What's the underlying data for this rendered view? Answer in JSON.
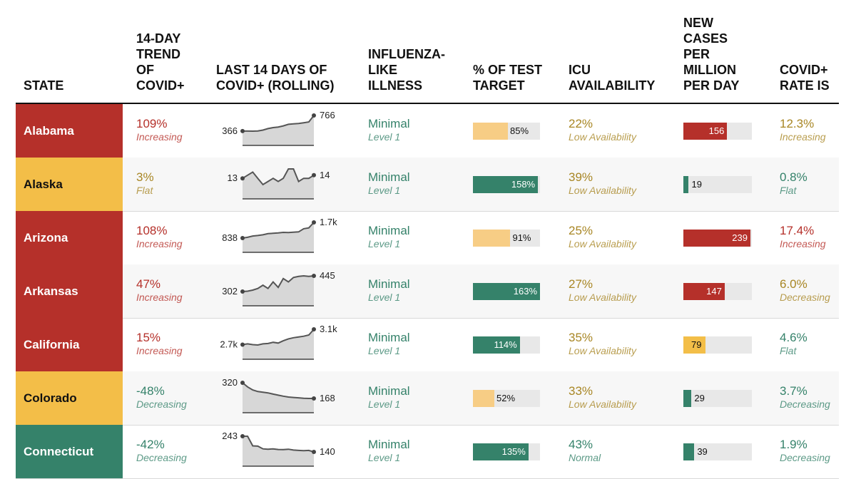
{
  "headers": {
    "state": "STATE",
    "trend": "14-DAY\nTREND\nOF\nCOVID+",
    "last14": "LAST 14 DAYS OF\nCOVID+ (ROLLING)",
    "ili": "INFLUENZA-\nLIKE\nILLNESS",
    "test": "% OF TEST\nTARGET",
    "icu": "ICU\nAVAILABILITY",
    "newcases": "NEW\nCASES\nPER\nMILLION\nPER DAY",
    "rate": "COVID+\nRATE IS"
  },
  "colors": {
    "red": "#b5302a",
    "yellow": "#f3be48",
    "green": "#35826a",
    "red_text": "#b5302a",
    "gold_text": "#a88624",
    "green_text": "#35826a",
    "pale_yellow_bar": "#f7cd85",
    "spark_fill": "#d7d7d7",
    "spark_line": "#555555"
  },
  "rows": [
    {
      "state": "Alabama",
      "state_color": "red",
      "trend_value": "109%",
      "trend_label": "Increasing",
      "trend_color": "red_text",
      "spark_start": "366",
      "spark_end": "766",
      "spark": [
        366,
        366,
        364,
        370,
        392,
        430,
        455,
        470,
        500,
        540,
        552,
        560,
        580,
        600,
        766
      ],
      "ili_value": "Minimal",
      "ili_level": "Level 1",
      "test_pct": 85,
      "test_label": "85%",
      "test_color": "pale_yellow_bar",
      "icu_value": "22%",
      "icu_label": "Low Availability",
      "icu_color": "gold_text",
      "cases": 156,
      "cases_label": "156",
      "cases_color": "red",
      "rate_value": "12.3%",
      "rate_label": "Increasing",
      "rate_color": "gold_text"
    },
    {
      "state": "Alaska",
      "state_color": "yellow",
      "trend_value": "3%",
      "trend_label": "Flat",
      "trend_color": "gold_text",
      "spark_start": "13",
      "spark_end": "14",
      "spark": [
        13,
        14,
        15,
        13,
        11,
        12,
        13,
        12,
        13,
        16,
        16,
        12,
        13,
        13,
        14
      ],
      "ili_value": "Minimal",
      "ili_level": "Level 1",
      "test_pct": 158,
      "test_label": "158%",
      "test_color": "green",
      "icu_value": "39%",
      "icu_label": "Low Availability",
      "icu_color": "gold_text",
      "cases": 19,
      "cases_label": "19",
      "cases_color": "green",
      "rate_value": "0.8%",
      "rate_label": "Flat",
      "rate_color": "green_text"
    },
    {
      "state": "Arizona",
      "state_color": "red",
      "trend_value": "108%",
      "trend_label": "Increasing",
      "trend_color": "red_text",
      "spark_start": "838",
      "spark_end": "1.7k",
      "spark": [
        838,
        880,
        950,
        980,
        1020,
        1080,
        1100,
        1120,
        1150,
        1140,
        1160,
        1180,
        1350,
        1400,
        1700
      ],
      "ili_value": "Minimal",
      "ili_level": "Level 1",
      "test_pct": 91,
      "test_label": "91%",
      "test_color": "pale_yellow_bar",
      "icu_value": "25%",
      "icu_label": "Low Availability",
      "icu_color": "gold_text",
      "cases": 239,
      "cases_label": "239",
      "cases_color": "red",
      "rate_value": "17.4%",
      "rate_label": "Increasing",
      "rate_color": "red_text"
    },
    {
      "state": "Arkansas",
      "state_color": "red",
      "trend_value": "47%",
      "trend_label": "Increasing",
      "trend_color": "red_text",
      "spark_start": "302",
      "spark_end": "445",
      "spark": [
        302,
        305,
        315,
        330,
        360,
        330,
        390,
        340,
        420,
        390,
        430,
        440,
        445,
        440,
        445
      ],
      "ili_value": "Minimal",
      "ili_level": "Level 1",
      "test_pct": 163,
      "test_label": "163%",
      "test_color": "green",
      "icu_value": "27%",
      "icu_label": "Low Availability",
      "icu_color": "gold_text",
      "cases": 147,
      "cases_label": "147",
      "cases_color": "red",
      "rate_value": "6.0%",
      "rate_label": "Decreasing",
      "rate_color": "gold_text"
    },
    {
      "state": "California",
      "state_color": "red",
      "trend_value": "15%",
      "trend_label": "Increasing",
      "trend_color": "red_text",
      "spark_start": "2.7k",
      "spark_end": "3.1k",
      "spark": [
        2700,
        2720,
        2700,
        2690,
        2720,
        2730,
        2760,
        2740,
        2800,
        2850,
        2880,
        2900,
        2920,
        2950,
        3100
      ],
      "ili_value": "Minimal",
      "ili_level": "Level 1",
      "test_pct": 114,
      "test_label": "114%",
      "test_color": "green",
      "icu_value": "35%",
      "icu_label": "Low Availability",
      "icu_color": "gold_text",
      "cases": 79,
      "cases_label": "79",
      "cases_color": "yellow",
      "rate_value": "4.6%",
      "rate_label": "Flat",
      "rate_color": "green_text"
    },
    {
      "state": "Colorado",
      "state_color": "yellow",
      "trend_value": "-48%",
      "trend_label": "Decreasing",
      "trend_color": "green_text",
      "spark_start": "320",
      "spark_end": "168",
      "spark": [
        320,
        280,
        250,
        235,
        228,
        222,
        210,
        200,
        190,
        182,
        178,
        174,
        170,
        168,
        168
      ],
      "ili_value": "Minimal",
      "ili_level": "Level 1",
      "test_pct": 52,
      "test_label": "52%",
      "test_color": "pale_yellow_bar",
      "icu_value": "33%",
      "icu_label": "Low Availability",
      "icu_color": "gold_text",
      "cases": 29,
      "cases_label": "29",
      "cases_color": "green",
      "rate_value": "3.7%",
      "rate_label": "Decreasing",
      "rate_color": "green_text"
    },
    {
      "state": "Connecticut",
      "state_color": "green",
      "trend_value": "-42%",
      "trend_label": "Decreasing",
      "trend_color": "green_text",
      "spark_start": "243",
      "spark_end": "140",
      "spark": [
        243,
        243,
        180,
        178,
        160,
        158,
        160,
        156,
        155,
        158,
        152,
        150,
        148,
        150,
        140
      ],
      "ili_value": "Minimal",
      "ili_level": "Level 1",
      "test_pct": 135,
      "test_label": "135%",
      "test_color": "green",
      "icu_value": "43%",
      "icu_label": "Normal",
      "icu_color": "green_text",
      "cases": 39,
      "cases_label": "39",
      "cases_color": "green",
      "rate_value": "1.9%",
      "rate_label": "Decreasing",
      "rate_color": "green_text"
    }
  ]
}
